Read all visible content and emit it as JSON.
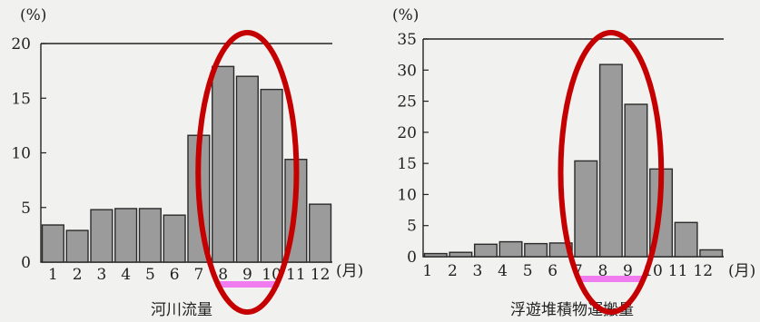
{
  "colors": {
    "bar_fill": "#9b9b9b",
    "highlight_ellipse": "#c40000",
    "highlight_underline": "#f07cf0"
  },
  "chart_data": [
    {
      "type": "bar",
      "title": "河川流量",
      "ylabel": "(%)",
      "xunit": "(月)",
      "categories": [
        "1",
        "2",
        "3",
        "4",
        "5",
        "6",
        "7",
        "8",
        "9",
        "10",
        "11",
        "12"
      ],
      "values": [
        3.4,
        2.9,
        4.8,
        4.9,
        4.9,
        4.3,
        11.6,
        17.9,
        17.0,
        15.8,
        9.4,
        5.3
      ],
      "ylim": [
        0,
        20
      ],
      "yticks": [
        "0",
        "5",
        "10",
        "15",
        "20"
      ],
      "highlight_months": [
        "8",
        "9",
        "10"
      ]
    },
    {
      "type": "bar",
      "title": "浮遊堆積物運搬量",
      "ylabel": "(%)",
      "xunit": "(月)",
      "categories": [
        "1",
        "2",
        "3",
        "4",
        "5",
        "6",
        "7",
        "8",
        "9",
        "10",
        "11",
        "12"
      ],
      "values": [
        0.5,
        0.7,
        2.0,
        2.4,
        2.1,
        2.2,
        15.4,
        30.9,
        24.5,
        14.1,
        5.5,
        1.1
      ],
      "ylim": [
        0,
        35
      ],
      "yticks": [
        "0",
        "5",
        "10",
        "15",
        "20",
        "25",
        "30",
        "35"
      ],
      "highlight_months": [
        "7",
        "8",
        "9"
      ]
    }
  ]
}
